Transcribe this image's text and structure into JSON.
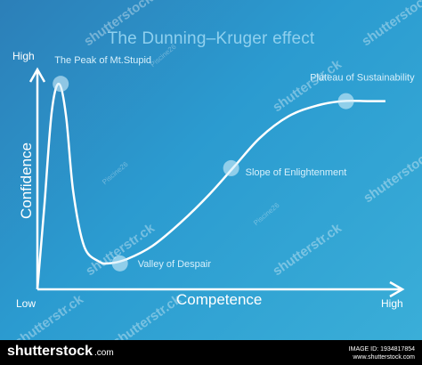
{
  "chart_data": {
    "type": "line",
    "title": "The Dunning–Kruger effect",
    "xlabel": "Competence",
    "ylabel": "Confidence",
    "x_axis_labels": {
      "low": "Low",
      "high": "High"
    },
    "y_axis_labels": {
      "high": "High"
    },
    "x": [
      0,
      2,
      4,
      6,
      8,
      10,
      13,
      17,
      20,
      25,
      32,
      40,
      48,
      55,
      62,
      70,
      78,
      85,
      92,
      97
    ],
    "y": [
      0,
      40,
      82,
      95,
      80,
      45,
      20,
      13,
      12,
      14,
      20,
      31,
      44,
      57,
      70,
      80,
      85,
      87,
      87,
      87
    ],
    "xlim": [
      0,
      100
    ],
    "ylim": [
      0,
      100
    ],
    "grid": false,
    "annotations": [
      {
        "label": "The Peak of Mt.Stupid",
        "x": 6.5,
        "y": 95
      },
      {
        "label": "Valley of Despair",
        "x": 23,
        "y": 12
      },
      {
        "label": "Slope of Enlightenment",
        "x": 54,
        "y": 56
      },
      {
        "label": "Plateau of Sustainability",
        "x": 86,
        "y": 87
      }
    ]
  },
  "watermark": {
    "shutterstock": "shutterstr.ck",
    "shutterstock_alt": "shutterstock",
    "contributor": "Piscine26"
  },
  "footer": {
    "brand": "shutterstock",
    "brand_domain": ".com",
    "image_id": "IMAGE ID: 1934817854",
    "site": "www.shutterstock.com"
  }
}
